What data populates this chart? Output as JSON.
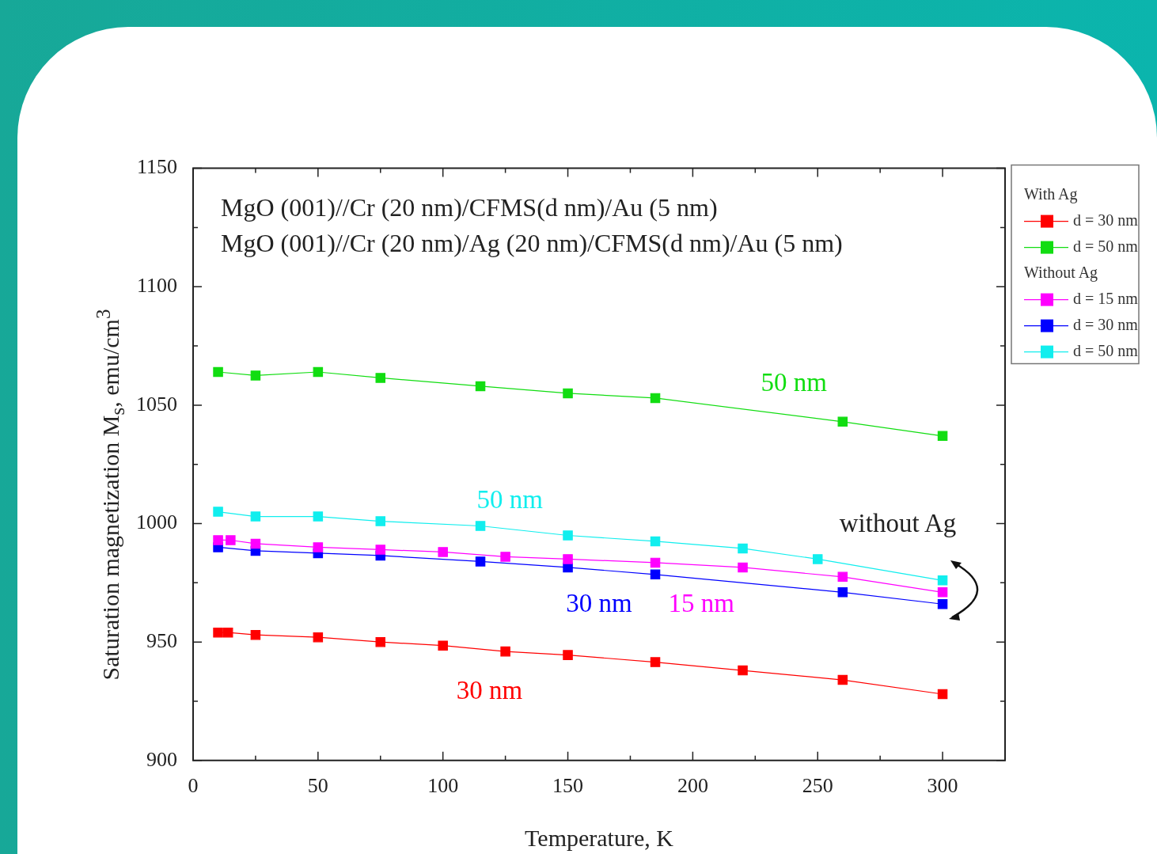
{
  "chart_data": {
    "type": "line",
    "xlabel": "Temperature, K",
    "ylabel": "Saturation magnetization M$_{s}$, emu/cm$^{3}$",
    "xlim": [
      0,
      325
    ],
    "ylim": [
      900,
      1150
    ],
    "xticks": [
      0,
      {
        "value": 25,
        "label": null
      },
      50,
      {
        "value": 75,
        "label": null
      },
      100,
      {
        "value": 125,
        "label": null
      },
      150,
      {
        "value": 175,
        "label": null
      },
      200,
      {
        "value": 225,
        "label": null
      },
      250,
      {
        "value": 275,
        "label": null
      },
      300
    ],
    "yticks": [
      900,
      {
        "value": 925,
        "label": null
      },
      950,
      {
        "value": 975,
        "label": null
      },
      1000,
      {
        "value": 1025,
        "label": null
      },
      1050,
      {
        "value": 1075,
        "label": null
      },
      1100,
      {
        "value": 1125,
        "label": null
      },
      1150
    ],
    "grid": false,
    "legend": "right",
    "marker": "square",
    "line_style": "solid",
    "series": [
      {
        "name": "d = 30 nm",
        "color": "#ff0000",
        "x": [
          10,
          14,
          25,
          50,
          75,
          100,
          125,
          150,
          185,
          220,
          260,
          300
        ],
        "values": [
          954,
          954,
          953,
          952,
          950,
          948.5,
          946,
          944.5,
          941.5,
          938,
          934,
          928
        ]
      },
      {
        "name": "d = 50 nm",
        "color": "#11dd11",
        "x": [
          10,
          25,
          50,
          75,
          115,
          150,
          185,
          260,
          300
        ],
        "values": [
          1064,
          1062.5,
          1064,
          1061.5,
          1058,
          1055,
          1053,
          1043,
          1037
        ]
      },
      {
        "name": "d = 15 nm",
        "color": "#ff00ff",
        "x": [
          10,
          15,
          25,
          50,
          75,
          100,
          125,
          150,
          185,
          220,
          260,
          300
        ],
        "values": [
          993,
          993,
          991.5,
          990,
          989,
          988,
          986,
          985,
          983.5,
          981.5,
          977.5,
          971
        ]
      },
      {
        "name": "d = 30 nm",
        "color": "#0000ff",
        "x": [
          10,
          25,
          50,
          75,
          115,
          150,
          185,
          260,
          300
        ],
        "values": [
          990,
          988.5,
          987.5,
          986.5,
          984,
          981.5,
          978.5,
          971,
          966
        ]
      },
      {
        "name": "d = 50 nm",
        "color": "#11eeee",
        "x": [
          10,
          25,
          50,
          75,
          115,
          150,
          185,
          220,
          250,
          300
        ],
        "values": [
          1005,
          1003,
          1003,
          1001,
          999,
          995,
          992.5,
          989.5,
          985,
          976
        ]
      }
    ],
    "annotations": [
      "MgO (001)//Cr (20 nm)/CFMS(d nm)/Au (5 nm)",
      "MgO (001)//Cr (20 nm)/Ag (20 nm)/CFMS(d nm)/Au (5 nm)",
      "With Ag",
      "Without Ag",
      "50 nm",
      "50 nm",
      "without Ag",
      "30 nm",
      "15 nm",
      "30 nm"
    ]
  }
}
